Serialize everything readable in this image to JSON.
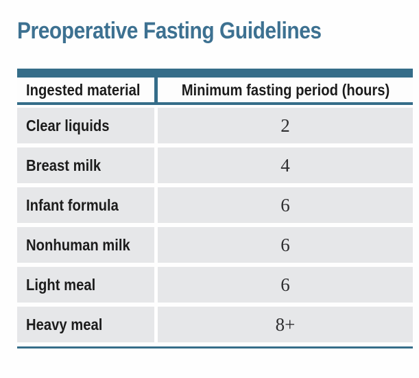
{
  "page": {
    "title": "Preoperative Fasting Guidelines"
  },
  "table": {
    "columns": [
      "Ingested material",
      "Minimum fasting period (hours)"
    ],
    "rows": [
      {
        "material": "Clear liquids",
        "hours": "2"
      },
      {
        "material": "Breast milk",
        "hours": "4"
      },
      {
        "material": "Infant formula",
        "hours": "6"
      },
      {
        "material": "Nonhuman milk",
        "hours": "6"
      },
      {
        "material": "Light meal",
        "hours": "6"
      },
      {
        "material": "Heavy meal",
        "hours": "8+"
      }
    ]
  },
  "chart_data": {
    "type": "table",
    "title": "Preoperative Fasting Guidelines",
    "columns": [
      "Ingested material",
      "Minimum fasting period (hours)"
    ],
    "rows": [
      [
        "Clear liquids",
        "2"
      ],
      [
        "Breast milk",
        "4"
      ],
      [
        "Infant formula",
        "6"
      ],
      [
        "Nonhuman milk",
        "6"
      ],
      [
        "Light meal",
        "6"
      ],
      [
        "Heavy meal",
        "8+"
      ]
    ]
  },
  "colors": {
    "accent_teal": "#356d89",
    "title_teal": "#3d7191",
    "row_gray": "#e6e7e9",
    "header_bg": "#fdfdfd",
    "label_ink": "#1c1c1c",
    "number_ink": "#2e2e30"
  }
}
